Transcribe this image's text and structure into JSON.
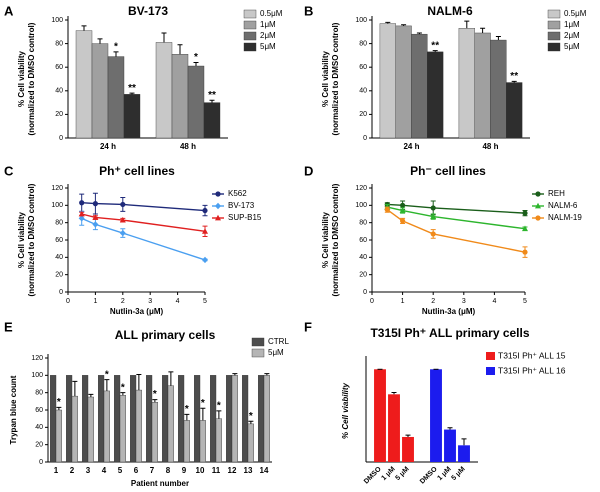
{
  "chart_data": [
    {
      "panel": "A",
      "type": "bar",
      "title": "BV-173",
      "ylabel": [
        "% Cell viability",
        "(normalized to DMSO control)"
      ],
      "categories": [
        "24 h",
        "48 h"
      ],
      "series": [
        {
          "name": "0.5μM",
          "color": "#c8c8c8",
          "values": [
            91,
            81
          ],
          "errors": [
            4,
            8
          ],
          "annotations": [
            null,
            null
          ]
        },
        {
          "name": "1μM",
          "color": "#a0a0a0",
          "values": [
            80,
            71
          ],
          "errors": [
            4,
            8
          ],
          "annotations": [
            null,
            null
          ]
        },
        {
          "name": "2μM",
          "color": "#6e6e6e",
          "values": [
            69,
            61
          ],
          "errors": [
            4,
            3
          ],
          "annotations": [
            "*",
            "*"
          ]
        },
        {
          "name": "5μM",
          "color": "#2e2e2e",
          "values": [
            37,
            30
          ],
          "errors": [
            1,
            2
          ],
          "annotations": [
            "**",
            "**"
          ]
        }
      ],
      "ylim": [
        0,
        100
      ],
      "yticks": [
        0,
        20,
        40,
        60,
        80,
        100
      ]
    },
    {
      "panel": "B",
      "type": "bar",
      "title": "NALM-6",
      "ylabel": [
        "% Cell viability",
        "(normalized to DMSO control)"
      ],
      "categories": [
        "24 h",
        "48 h"
      ],
      "series": [
        {
          "name": "0.5μM",
          "color": "#c8c8c8",
          "values": [
            97,
            93
          ],
          "errors": [
            1,
            6
          ],
          "annotations": [
            null,
            null
          ]
        },
        {
          "name": "1μM",
          "color": "#a0a0a0",
          "values": [
            95,
            89
          ],
          "errors": [
            1,
            4
          ],
          "annotations": [
            null,
            null
          ]
        },
        {
          "name": "2μM",
          "color": "#6e6e6e",
          "values": [
            88,
            83
          ],
          "errors": [
            1,
            3
          ],
          "annotations": [
            null,
            null
          ]
        },
        {
          "name": "5μM",
          "color": "#2e2e2e",
          "values": [
            73,
            47
          ],
          "errors": [
            1,
            1
          ],
          "annotations": [
            "**",
            "**"
          ]
        }
      ],
      "ylim": [
        0,
        100
      ],
      "yticks": [
        0,
        20,
        40,
        60,
        80,
        100
      ]
    },
    {
      "panel": "C",
      "type": "line",
      "title": "Ph⁺ cell lines",
      "ylabel": [
        "% Cell viability",
        "(normalized to DMSO control)"
      ],
      "xlabel": "Nutlin-3a (μM)",
      "x": [
        0.5,
        1,
        2,
        5
      ],
      "xlim": [
        0,
        5
      ],
      "xticks": [
        0,
        1,
        2,
        3,
        4,
        5
      ],
      "series": [
        {
          "name": "K562",
          "color": "#1f2a7a",
          "marker": "circle",
          "values": [
            103,
            102,
            101,
            94
          ],
          "errors": [
            10,
            12,
            8,
            6
          ]
        },
        {
          "name": "BV-173",
          "color": "#4a9ff0",
          "marker": "diamond",
          "values": [
            85,
            78,
            68,
            37
          ],
          "errors": [
            8,
            6,
            5,
            1
          ]
        },
        {
          "name": "SUP-B15",
          "color": "#e02020",
          "marker": "triangle",
          "values": [
            90,
            86,
            83,
            70
          ],
          "errors": [
            2,
            2,
            2,
            6
          ]
        }
      ],
      "ylim": [
        0,
        120
      ],
      "yticks": [
        0,
        20,
        40,
        60,
        80,
        100,
        120
      ]
    },
    {
      "panel": "D",
      "type": "line",
      "title": "Ph⁻ cell lines",
      "ylabel": [
        "% Cell viability",
        "(normalized to DMSO control)"
      ],
      "xlabel": "Nutlin-3a (μM)",
      "x": [
        0.5,
        1,
        2,
        5
      ],
      "xlim": [
        0,
        5
      ],
      "xticks": [
        0,
        1,
        2,
        3,
        4,
        5
      ],
      "series": [
        {
          "name": "REH",
          "color": "#1a5e1a",
          "marker": "circle",
          "values": [
            101,
            100,
            97,
            91
          ],
          "errors": [
            2,
            5,
            8,
            3
          ]
        },
        {
          "name": "NALM-6",
          "color": "#2db52d",
          "marker": "triangle",
          "values": [
            98,
            94,
            87,
            73
          ],
          "errors": [
            3,
            3,
            3,
            2
          ]
        },
        {
          "name": "NALM-19",
          "color": "#f08a1a",
          "marker": "circle",
          "values": [
            95,
            82,
            67,
            46
          ],
          "errors": [
            3,
            3,
            5,
            6
          ]
        }
      ],
      "ylim": [
        0,
        120
      ],
      "yticks": [
        0,
        20,
        40,
        60,
        80,
        100,
        120
      ]
    },
    {
      "panel": "E",
      "type": "bar",
      "title": "ALL primary cells",
      "ylabel": [
        "Trypan blue count"
      ],
      "xlabel": "Patient number",
      "categories": [
        "1",
        "2",
        "3",
        "4",
        "5",
        "6",
        "7",
        "8",
        "9",
        "10",
        "11",
        "12",
        "13",
        "14"
      ],
      "series": [
        {
          "name": "CTRL",
          "color": "#4d4d4d",
          "values": [
            100,
            100,
            100,
            100,
            100,
            100,
            100,
            100,
            100,
            100,
            100,
            100,
            100,
            100
          ]
        },
        {
          "name": "5μM",
          "color": "#b5b5b5",
          "values": [
            60,
            76,
            75,
            82,
            77,
            83,
            69,
            88,
            48,
            48,
            50,
            100,
            44,
            100
          ],
          "errors": [
            3,
            17,
            3,
            13,
            3,
            18,
            3,
            16,
            7,
            14,
            9,
            2,
            3,
            2
          ],
          "annotations": [
            "*",
            null,
            null,
            "*",
            "*",
            null,
            "*",
            null,
            "*",
            "*",
            "*",
            null,
            "*",
            null
          ]
        }
      ],
      "ylim": [
        0,
        120
      ],
      "yticks": [
        0,
        20,
        40,
        60,
        80,
        100,
        120
      ]
    },
    {
      "panel": "F",
      "type": "bar",
      "group_by": "series",
      "title": "T315I Ph⁺ ALL primary cells",
      "ylabel": [
        "% Cell viability"
      ],
      "categories": [
        "DMSO",
        "1 μM",
        "5 μM"
      ],
      "series": [
        {
          "name": "T315I Ph⁺ ALL 15",
          "color": "#ee1c1c",
          "values": [
            100,
            73,
            27
          ],
          "errors": [
            0,
            2,
            2
          ]
        },
        {
          "name": "T315I Ph⁺ ALL 16",
          "color": "#1c1cee",
          "values": [
            100,
            35,
            18
          ],
          "errors": [
            0,
            2,
            7
          ]
        }
      ],
      "ylim": [
        0,
        110
      ]
    }
  ]
}
